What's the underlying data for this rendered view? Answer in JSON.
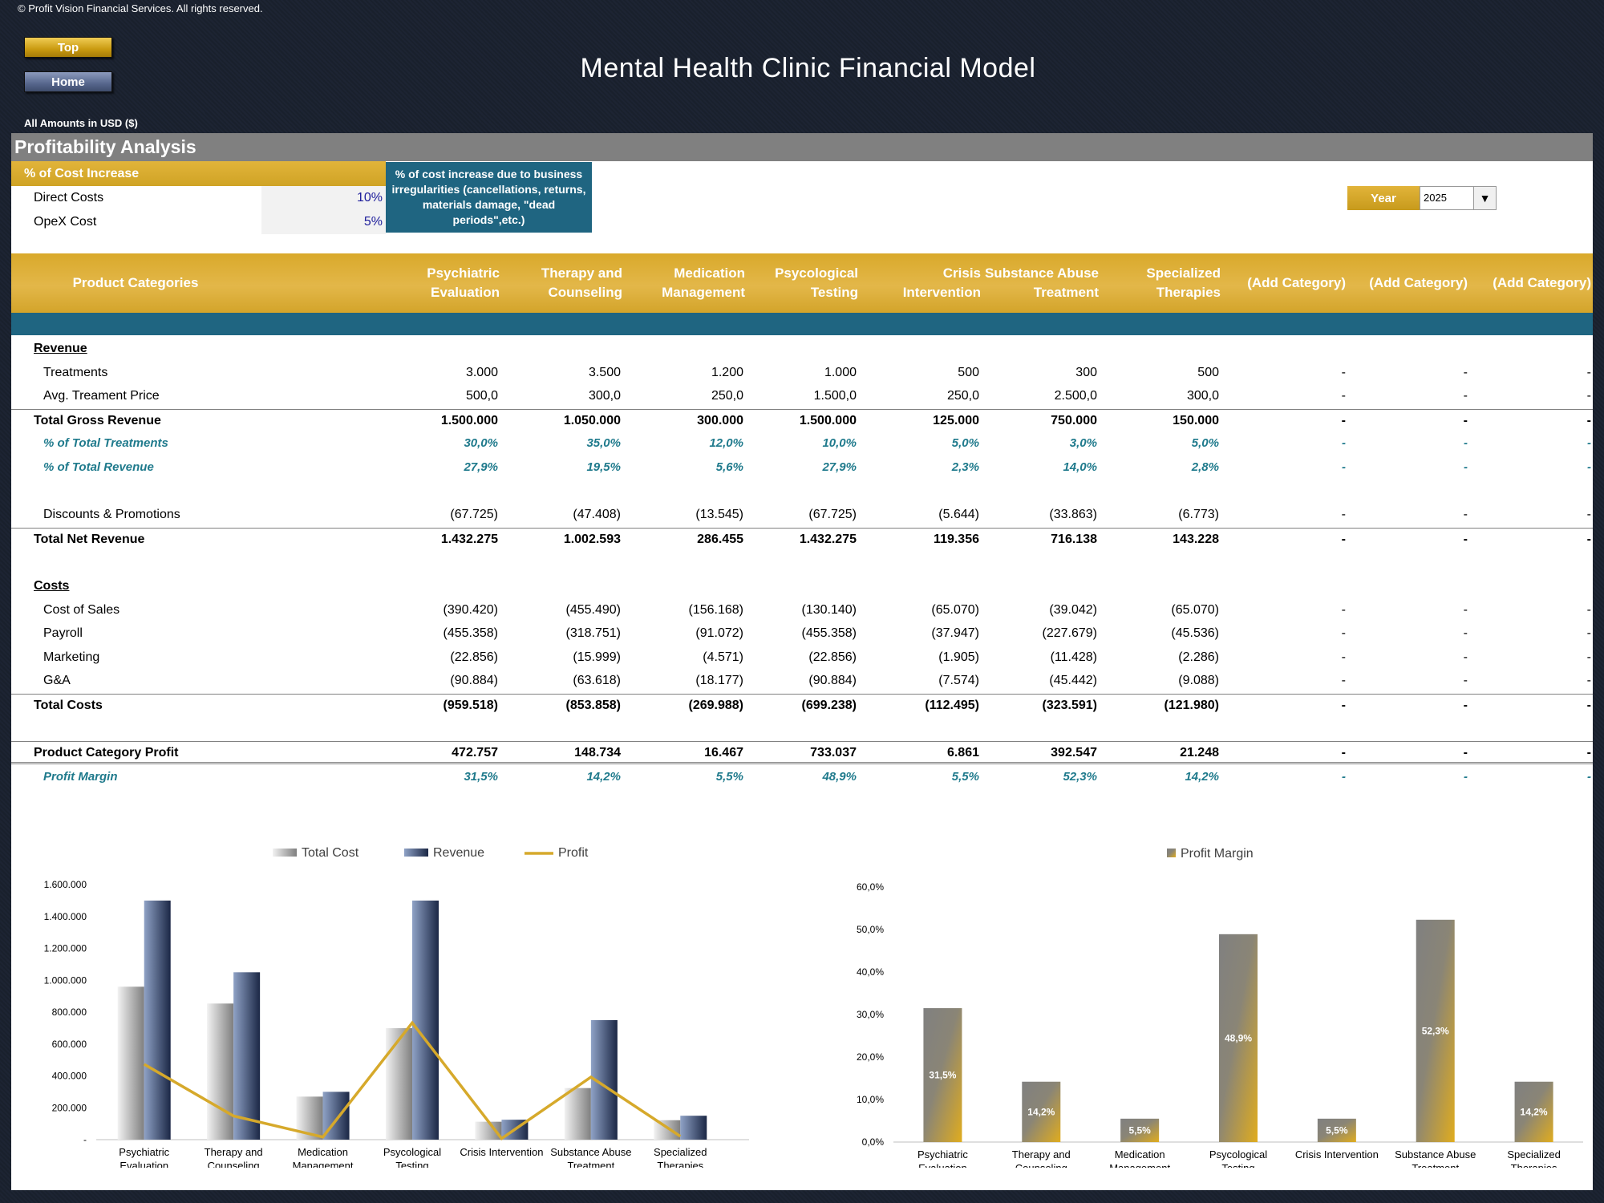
{
  "copyright": "© Profit Vision Financial Services. All rights reserved.",
  "nav": {
    "top_label": "Top",
    "home_label": "Home"
  },
  "title": "Mental Health Clinic Financial Model",
  "amounts_note": "All Amounts in  USD ($)",
  "section_title": "Profitability Analysis",
  "cost_increase": {
    "label": "% of Cost Increase",
    "direct_label": "Direct Costs",
    "direct_value": "10%",
    "opex_label": "OpeX Cost",
    "opex_value": "5%",
    "note": "% of cost increase due to business irregularities (cancellations, returns, materials damage, \"dead periods\",etc.)"
  },
  "year": {
    "label": "Year",
    "value": "2025"
  },
  "table": {
    "header_first": "Product Categories",
    "columns": [
      "Psychiatric Evaluation",
      "Therapy and Counseling",
      "Medication Management",
      "Psycological Testing",
      "Crisis Intervention",
      "Substance Abuse Treatment",
      "Specialized Therapies",
      "(Add Category)",
      "(Add Category)",
      "(Add Category)"
    ],
    "rows": [
      {
        "label": "Revenue",
        "style": "section",
        "cells": []
      },
      {
        "label": "Treatments",
        "style": "sub",
        "cells": [
          "3.000",
          "3.500",
          "1.200",
          "1.000",
          "500",
          "300",
          "500",
          "-",
          "-",
          "-"
        ]
      },
      {
        "label": "Avg. Treament Price",
        "style": "sub",
        "cells": [
          "500,0",
          "300,0",
          "250,0",
          "1.500,0",
          "250,0",
          "2.500,0",
          "300,0",
          "-",
          "-",
          "-"
        ]
      },
      {
        "label": "Total Gross Revenue",
        "style": "total",
        "cells": [
          "1.500.000",
          "1.050.000",
          "300.000",
          "1.500.000",
          "125.000",
          "750.000",
          "150.000",
          "-",
          "-",
          "-"
        ]
      },
      {
        "label": "% of Total Treatments",
        "style": "pct",
        "cells": [
          "30,0%",
          "35,0%",
          "12,0%",
          "10,0%",
          "5,0%",
          "3,0%",
          "5,0%",
          "-",
          "-",
          "-"
        ]
      },
      {
        "label": "% of Total Revenue",
        "style": "pct",
        "cells": [
          "27,9%",
          "19,5%",
          "5,6%",
          "27,9%",
          "2,3%",
          "14,0%",
          "2,8%",
          "-",
          "-",
          "-"
        ]
      },
      {
        "label": "",
        "style": "blank",
        "cells": []
      },
      {
        "label": "Discounts & Promotions",
        "style": "sub",
        "cells": [
          "(67.725)",
          "(47.408)",
          "(13.545)",
          "(67.725)",
          "(5.644)",
          "(33.863)",
          "(6.773)",
          "-",
          "-",
          "-"
        ]
      },
      {
        "label": "Total Net Revenue",
        "style": "total",
        "cells": [
          "1.432.275",
          "1.002.593",
          "286.455",
          "1.432.275",
          "119.356",
          "716.138",
          "143.228",
          "-",
          "-",
          "-"
        ]
      },
      {
        "label": "",
        "style": "blank",
        "cells": []
      },
      {
        "label": "Costs",
        "style": "section",
        "cells": []
      },
      {
        "label": "Cost of Sales",
        "style": "sub",
        "cells": [
          "(390.420)",
          "(455.490)",
          "(156.168)",
          "(130.140)",
          "(65.070)",
          "(39.042)",
          "(65.070)",
          "-",
          "-",
          "-"
        ]
      },
      {
        "label": "Payroll",
        "style": "sub",
        "cells": [
          "(455.358)",
          "(318.751)",
          "(91.072)",
          "(455.358)",
          "(37.947)",
          "(227.679)",
          "(45.536)",
          "-",
          "-",
          "-"
        ]
      },
      {
        "label": "Marketing",
        "style": "sub",
        "cells": [
          "(22.856)",
          "(15.999)",
          "(4.571)",
          "(22.856)",
          "(1.905)",
          "(11.428)",
          "(2.286)",
          "-",
          "-",
          "-"
        ]
      },
      {
        "label": "G&A",
        "style": "sub",
        "cells": [
          "(90.884)",
          "(63.618)",
          "(18.177)",
          "(90.884)",
          "(7.574)",
          "(45.442)",
          "(9.088)",
          "-",
          "-",
          "-"
        ]
      },
      {
        "label": "Total Costs",
        "style": "total",
        "cells": [
          "(959.518)",
          "(853.858)",
          "(269.988)",
          "(699.238)",
          "(112.495)",
          "(323.591)",
          "(121.980)",
          "-",
          "-",
          "-"
        ]
      },
      {
        "label": "",
        "style": "blank",
        "cells": []
      },
      {
        "label": "Product Category Profit",
        "style": "profit",
        "cells": [
          "472.757",
          "148.734",
          "16.467",
          "733.037",
          "6.861",
          "392.547",
          "21.248",
          "-",
          "-",
          "-"
        ]
      },
      {
        "label": "Profit Margin",
        "style": "margin",
        "cells": [
          "31,5%",
          "14,2%",
          "5,5%",
          "48,9%",
          "5,5%",
          "52,3%",
          "14,2%",
          "-",
          "-",
          "-"
        ]
      }
    ]
  },
  "colors": {
    "gold": "#d9a92b",
    "teal": "#1f6581",
    "navy": "#1e2a44",
    "grey": "#808080"
  },
  "chart_data": [
    {
      "type": "bar",
      "title": "",
      "categories": [
        "Psychiatric Evaluation",
        "Therapy and Counseling",
        "Medication Management",
        "Psycological Testing",
        "Crisis Intervention",
        "Substance Abuse Treatment",
        "Specialized Therapies"
      ],
      "series": [
        {
          "name": "Total Cost",
          "type": "bar",
          "values": [
            959518,
            853858,
            269988,
            699238,
            112495,
            323591,
            121980
          ]
        },
        {
          "name": "Revenue",
          "type": "bar",
          "values": [
            1500000,
            1050000,
            300000,
            1500000,
            125000,
            750000,
            150000
          ]
        },
        {
          "name": "Profit",
          "type": "line",
          "values": [
            472757,
            148734,
            16467,
            733037,
            6861,
            392547,
            21248
          ]
        }
      ],
      "ylim": [
        0,
        1600000
      ],
      "yticks": [
        "-",
        "200.000",
        "400.000",
        "600.000",
        "800.000",
        "1.000.000",
        "1.200.000",
        "1.400.000",
        "1.600.000"
      ],
      "legend": "top",
      "grid": false
    },
    {
      "type": "bar",
      "title": "",
      "categories": [
        "Psychiatric Evaluation",
        "Therapy and Counseling",
        "Medication Management",
        "Psycological Testing",
        "Crisis Intervention",
        "Substance Abuse Treatment",
        "Specialized Therapies"
      ],
      "series": [
        {
          "name": "Profit Margin",
          "values": [
            31.5,
            14.2,
            5.5,
            48.9,
            5.5,
            52.3,
            14.2
          ],
          "labels": [
            "31,5%",
            "14,2%",
            "5,5%",
            "48,9%",
            "5,5%",
            "52,3%",
            "14,2%"
          ]
        }
      ],
      "ylim": [
        0,
        60
      ],
      "yticks": [
        "0,0%",
        "10,0%",
        "20,0%",
        "30,0%",
        "40,0%",
        "50,0%",
        "60,0%"
      ],
      "legend": "top",
      "grid": false
    }
  ]
}
